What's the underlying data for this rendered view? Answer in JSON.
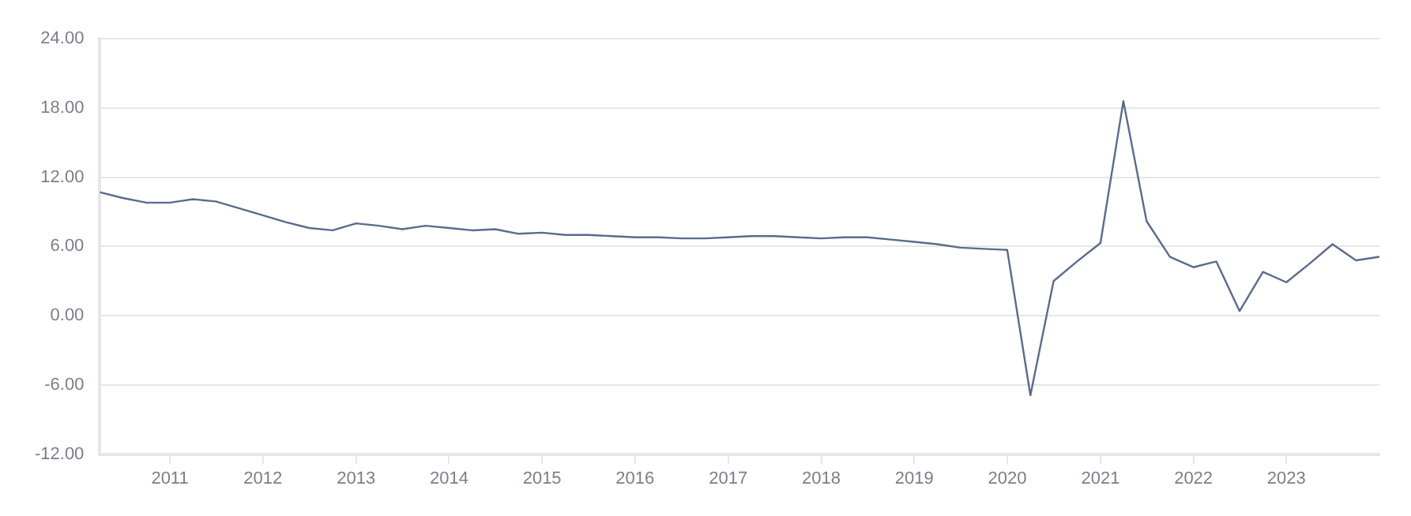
{
  "chart_data": {
    "type": "line",
    "x": [
      "2010-04",
      "2010-07",
      "2010-10",
      "2011-01",
      "2011-04",
      "2011-07",
      "2011-10",
      "2012-01",
      "2012-04",
      "2012-07",
      "2012-10",
      "2013-01",
      "2013-04",
      "2013-07",
      "2013-10",
      "2014-01",
      "2014-04",
      "2014-07",
      "2014-10",
      "2015-01",
      "2015-04",
      "2015-07",
      "2015-10",
      "2016-01",
      "2016-04",
      "2016-07",
      "2016-10",
      "2017-01",
      "2017-04",
      "2017-07",
      "2017-10",
      "2018-01",
      "2018-04",
      "2018-07",
      "2018-10",
      "2019-01",
      "2019-04",
      "2019-07",
      "2019-10",
      "2020-01",
      "2020-04",
      "2020-07",
      "2020-10",
      "2021-01",
      "2021-04",
      "2021-07",
      "2021-10",
      "2022-01",
      "2022-04",
      "2022-07",
      "2022-10",
      "2023-01",
      "2023-04",
      "2023-07",
      "2023-10",
      "2024-01"
    ],
    "series": [
      {
        "color": "#5a6b8c",
        "values": [
          10.7,
          10.2,
          9.8,
          9.8,
          10.1,
          9.9,
          9.3,
          8.7,
          8.1,
          7.6,
          7.4,
          8.0,
          7.8,
          7.5,
          7.8,
          7.6,
          7.4,
          7.5,
          7.1,
          7.2,
          7.0,
          7.0,
          6.9,
          6.8,
          6.8,
          6.7,
          6.7,
          6.8,
          6.9,
          6.9,
          6.8,
          6.7,
          6.8,
          6.8,
          6.6,
          6.4,
          6.2,
          5.9,
          5.8,
          5.7,
          -6.9,
          3.0,
          4.7,
          6.3,
          18.6,
          8.2,
          5.1,
          4.2,
          4.7,
          0.4,
          3.8,
          2.9,
          4.5,
          6.2,
          4.8,
          5.1
        ]
      }
    ],
    "xlim": [
      "2010-04",
      "2024-01"
    ],
    "xticks": [
      "2011",
      "2012",
      "2013",
      "2014",
      "2015",
      "2016",
      "2017",
      "2018",
      "2019",
      "2020",
      "2021",
      "2022",
      "2023"
    ],
    "ylim": [
      -12,
      24
    ],
    "yticks": [
      {
        "value": -12,
        "label": "-12.00"
      },
      {
        "value": -6,
        "label": "-6.00"
      },
      {
        "value": 0,
        "label": "0.00"
      },
      {
        "value": 6,
        "label": "6.00"
      },
      {
        "value": 12,
        "label": "12.00"
      },
      {
        "value": 18,
        "label": "18.00"
      },
      {
        "value": 24,
        "label": "24.00"
      }
    ],
    "grid": "y",
    "legend": false,
    "marker": "none",
    "line_style": "solid"
  }
}
